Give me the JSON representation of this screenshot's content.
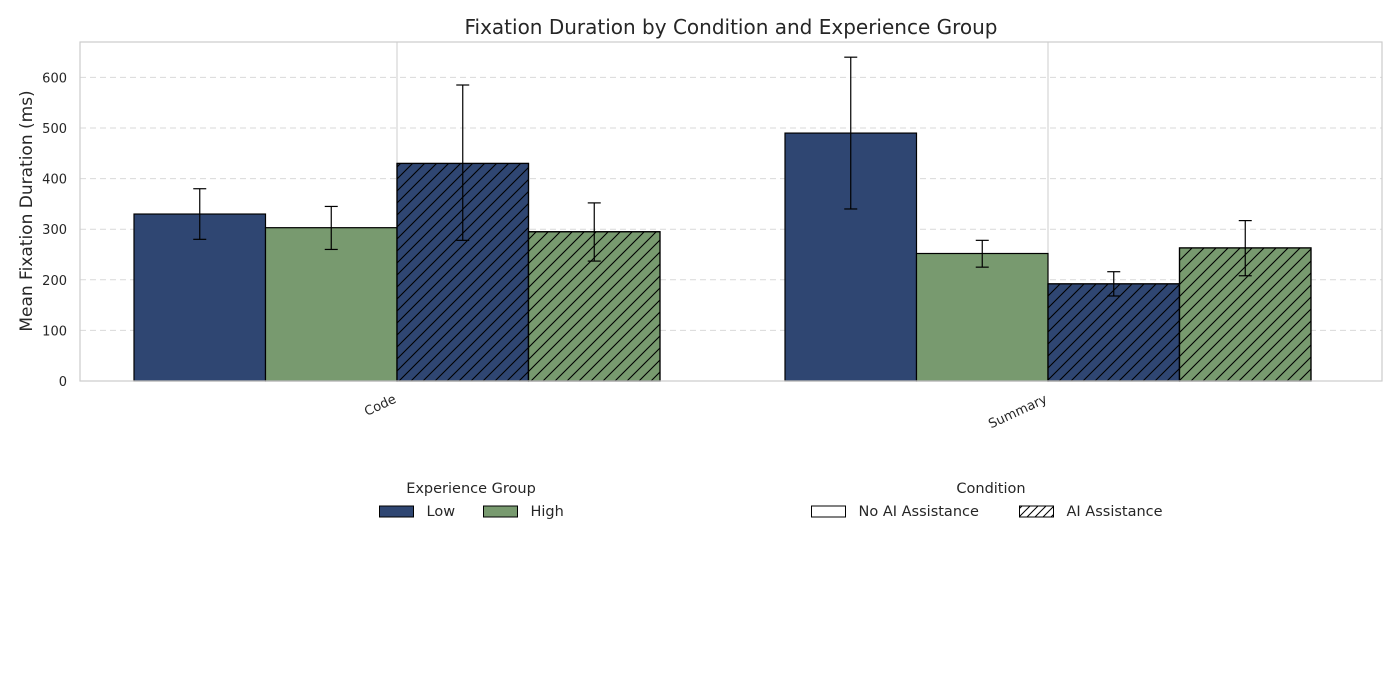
{
  "chart_data": {
    "type": "bar",
    "title": "Fixation Duration by Condition and Experience Group",
    "xlabel": "",
    "ylabel": "Mean Fixation Duration (ms)",
    "ylim": [
      0,
      670
    ],
    "yticks": [
      0,
      100,
      200,
      300,
      400,
      500,
      600
    ],
    "categories": [
      "Code",
      "Summary"
    ],
    "grid": {
      "y": true,
      "style": "dashed"
    },
    "series": [
      {
        "group": "Low",
        "condition": "No AI Assistance",
        "color": "#2f4672",
        "hatch": false,
        "values": [
          330,
          490
        ],
        "err_low": [
          280,
          340
        ],
        "err_high": [
          380,
          640
        ]
      },
      {
        "group": "High",
        "condition": "No AI Assistance",
        "color": "#789a6f",
        "hatch": false,
        "values": [
          303,
          252
        ],
        "err_low": [
          260,
          225
        ],
        "err_high": [
          345,
          278
        ]
      },
      {
        "group": "Low",
        "condition": "AI Assistance",
        "color": "#2f4672",
        "hatch": true,
        "values": [
          430,
          192
        ],
        "err_low": [
          278,
          168
        ],
        "err_high": [
          585,
          216
        ]
      },
      {
        "group": "High",
        "condition": "AI Assistance",
        "color": "#789a6f",
        "hatch": true,
        "values": [
          295,
          263
        ],
        "err_low": [
          237,
          208
        ],
        "err_high": [
          352,
          317
        ]
      }
    ],
    "legends": [
      {
        "title": "Experience Group",
        "placement": "bottom-left",
        "entries": [
          {
            "label": "Low",
            "color": "#2f4672",
            "hatch": false
          },
          {
            "label": "High",
            "color": "#789a6f",
            "hatch": false
          }
        ]
      },
      {
        "title": "Condition",
        "placement": "bottom-right",
        "entries": [
          {
            "label": "No AI Assistance",
            "color": "#ffffff",
            "hatch": false
          },
          {
            "label": "AI Assistance",
            "color": "#ffffff",
            "hatch": true
          }
        ]
      }
    ]
  }
}
